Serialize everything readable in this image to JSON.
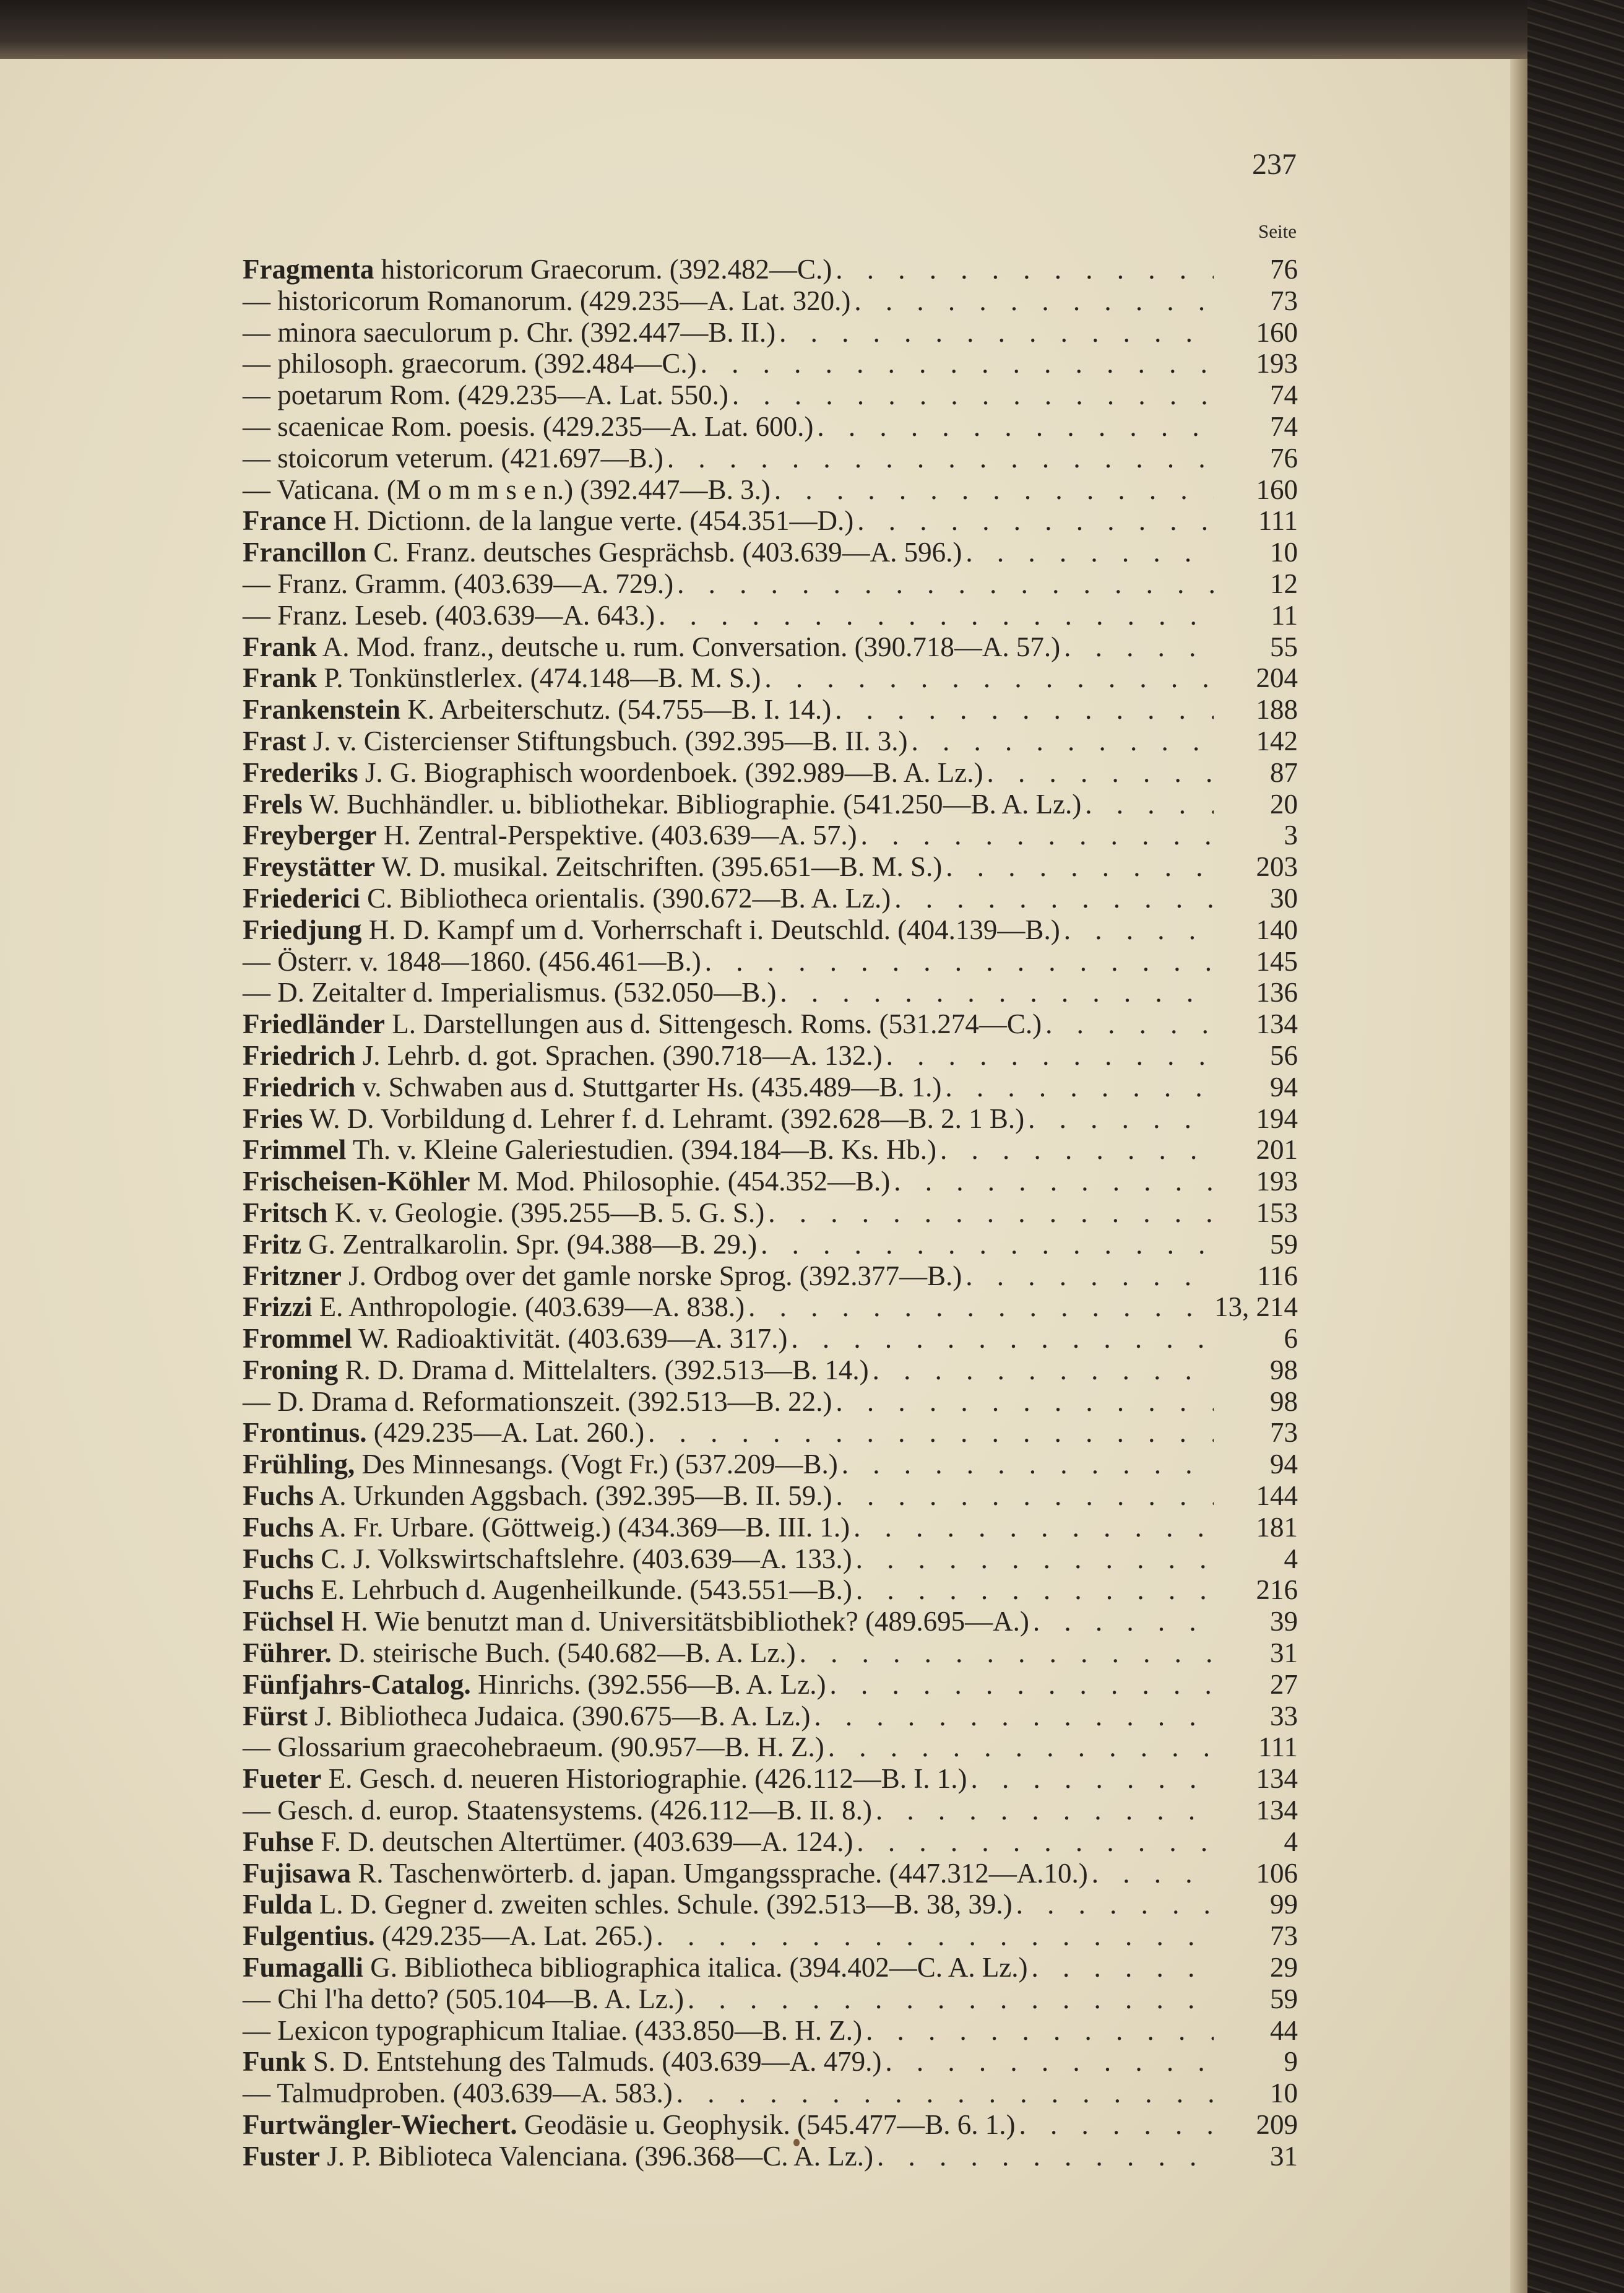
{
  "page_number": "237",
  "column_header": "Seite",
  "entries": [
    {
      "name": "Fragmenta",
      "text": " historicorum Graecorum. (392.482—C.)",
      "page": "76"
    },
    {
      "name": "",
      "text": "— historicorum Romanorum. (429.235—A. Lat. 320.)",
      "page": "73"
    },
    {
      "name": "",
      "text": "— minora saeculorum p. Chr. (392.447—B. II.)",
      "page": "160"
    },
    {
      "name": "",
      "text": "— philosoph. graecorum. (392.484—C.)",
      "page": "193"
    },
    {
      "name": "",
      "text": "— poetarum Rom. (429.235—A. Lat. 550.)",
      "page": "74"
    },
    {
      "name": "",
      "text": "— scaenicae Rom. poesis. (429.235—A. Lat. 600.)",
      "page": "74"
    },
    {
      "name": "",
      "text": "— stoicorum veterum. (421.697—B.)",
      "page": "76"
    },
    {
      "name": "",
      "text": "— Vaticana. (M o m m s e n.) (392.447—B. 3.)",
      "page": "160"
    },
    {
      "name": "France",
      "text": " H. Dictionn. de la langue verte. (454.351—D.)",
      "page": "111"
    },
    {
      "name": "Francillon",
      "text": " C. Franz. deutsches Gesprächsb. (403.639—A. 596.)",
      "page": "10"
    },
    {
      "name": "",
      "text": "— Franz. Gramm. (403.639—A. 729.)",
      "page": "12"
    },
    {
      "name": "",
      "text": "— Franz. Leseb. (403.639—A. 643.)",
      "page": "11"
    },
    {
      "name": "Frank",
      "text": " A. Mod. franz., deutsche u. rum. Conversation. (390.718—A. 57.)",
      "page": "55"
    },
    {
      "name": "Frank",
      "text": " P. Tonkünstlerlex. (474.148—B. M. S.)",
      "page": "204"
    },
    {
      "name": "Frankenstein",
      "text": " K. Arbeiterschutz. (54.755—B. I. 14.)",
      "page": "188"
    },
    {
      "name": "Frast",
      "text": " J. v. Cistercienser Stiftungsbuch. (392.395—B. II. 3.)",
      "page": "142"
    },
    {
      "name": "Frederiks",
      "text": " J. G. Biographisch woordenboek. (392.989—B. A. Lz.)",
      "page": "87"
    },
    {
      "name": "Frels",
      "text": " W. Buchhändler. u. bibliothekar. Bibliographie. (541.250—B. A. Lz.)",
      "page": "20"
    },
    {
      "name": "Freyberger",
      "text": " H. Zentral-Perspektive. (403.639—A. 57.)",
      "page": "3"
    },
    {
      "name": "Freystätter",
      "text": " W. D. musikal. Zeitschriften. (395.651—B. M. S.)",
      "page": "203"
    },
    {
      "name": "Friederici",
      "text": " C. Bibliotheca orientalis. (390.672—B. A. Lz.)",
      "page": "30"
    },
    {
      "name": "Friedjung",
      "text": " H. D. Kampf um d. Vorherrschaft i. Deutschld. (404.139—B.)",
      "page": "140"
    },
    {
      "name": "",
      "text": "— Österr. v. 1848—1860. (456.461—B.)",
      "page": "145"
    },
    {
      "name": "",
      "text": "— D. Zeitalter d. Imperialismus. (532.050—B.)",
      "page": "136"
    },
    {
      "name": "Friedländer",
      "text": " L. Darstellungen aus d. Sittengesch. Roms. (531.274—C.)",
      "page": "134"
    },
    {
      "name": "Friedrich",
      "text": " J. Lehrb. d. got. Sprachen. (390.718—A. 132.)",
      "page": "56"
    },
    {
      "name": "Friedrich",
      "text": " v. Schwaben aus d. Stuttgarter Hs. (435.489—B. 1.)",
      "page": "94"
    },
    {
      "name": "Fries",
      "text": " W. D. Vorbildung d. Lehrer f. d. Lehramt. (392.628—B. 2. 1 B.)",
      "page": "194"
    },
    {
      "name": "Frimmel",
      "text": " Th. v. Kleine Galeriestudien. (394.184—B. Ks. Hb.)",
      "page": "201"
    },
    {
      "name": "Frischeisen-Köhler",
      "text": " M. Mod. Philosophie. (454.352—B.)",
      "page": "193"
    },
    {
      "name": "Fritsch",
      "text": " K. v. Geologie. (395.255—B. 5. G. S.)",
      "page": "153"
    },
    {
      "name": "Fritz",
      "text": " G. Zentralkarolin. Spr. (94.388—B. 29.)",
      "page": "59"
    },
    {
      "name": "Fritzner",
      "text": " J. Ordbog over det gamle norske Sprog. (392.377—B.)",
      "page": "116"
    },
    {
      "name": "Frizzi",
      "text": " E. Anthropologie. (403.639—A. 838.)",
      "page": "13, 214"
    },
    {
      "name": "Frommel",
      "text": " W. Radioaktivität. (403.639—A. 317.)",
      "page": "6"
    },
    {
      "name": "Froning",
      "text": " R. D. Drama d. Mittelalters. (392.513—B. 14.)",
      "page": "98"
    },
    {
      "name": "",
      "text": "— D. Drama d. Reformationszeit. (392.513—B. 22.)",
      "page": "98"
    },
    {
      "name": "Frontinus.",
      "text": " (429.235—A. Lat. 260.)",
      "page": "73"
    },
    {
      "name": "Frühling,",
      "text": " Des Minnesangs. (Vogt Fr.) (537.209—B.)",
      "page": "94"
    },
    {
      "name": "Fuchs",
      "text": " A. Urkunden Aggsbach. (392.395—B. II. 59.)",
      "page": "144"
    },
    {
      "name": "Fuchs",
      "text": " A. Fr. Urbare. (Göttweig.) (434.369—B. III. 1.)",
      "page": "181"
    },
    {
      "name": "Fuchs",
      "text": " C. J. Volkswirtschaftslehre. (403.639—A. 133.)",
      "page": "4"
    },
    {
      "name": "Fuchs",
      "text": " E. Lehrbuch d. Augenheilkunde. (543.551—B.)",
      "page": "216"
    },
    {
      "name": "Füchsel",
      "text": " H. Wie benutzt man d. Universitätsbibliothek? (489.695—A.)",
      "page": "39"
    },
    {
      "name": "Führer.",
      "text": " D. steirische Buch. (540.682—B. A. Lz.)",
      "page": "31"
    },
    {
      "name": "Fünfjahrs-Catalog.",
      "text": " Hinrichs. (392.556—B. A. Lz.)",
      "page": "27"
    },
    {
      "name": "Fürst",
      "text": " J. Bibliotheca Judaica. (390.675—B. A. Lz.)",
      "page": "33"
    },
    {
      "name": "",
      "text": "— Glossarium graecohebraeum. (90.957—B. H. Z.)",
      "page": "111"
    },
    {
      "name": "Fueter",
      "text": " E. Gesch. d. neueren Historiographie. (426.112—B. I. 1.)",
      "page": "134"
    },
    {
      "name": "",
      "text": "— Gesch. d. europ. Staatensystems. (426.112—B. II. 8.)",
      "page": "134"
    },
    {
      "name": "Fuhse",
      "text": " F. D. deutschen Altertümer. (403.639—A. 124.)",
      "page": "4"
    },
    {
      "name": "Fujisawa",
      "text": " R. Taschenwörterb. d. japan. Umgangssprache. (447.312—A.10.)",
      "page": "106"
    },
    {
      "name": "Fulda",
      "text": " L. D. Gegner d. zweiten schles. Schule. (392.513—B. 38, 39.)",
      "page": "99"
    },
    {
      "name": "Fulgentius.",
      "text": " (429.235—A. Lat. 265.)",
      "page": "73"
    },
    {
      "name": "Fumagalli",
      "text": " G. Bibliotheca bibliographica italica. (394.402—C. A. Lz.)",
      "page": "29"
    },
    {
      "name": "",
      "text": "— Chi l'ha detto? (505.104—B. A. Lz.)",
      "page": "59"
    },
    {
      "name": "",
      "text": "— Lexicon typographicum Italiae. (433.850—B. H. Z.)",
      "page": "44"
    },
    {
      "name": "Funk",
      "text": " S. D. Entstehung des Talmuds. (403.639—A. 479.)",
      "page": "9"
    },
    {
      "name": "",
      "text": "— Talmudproben. (403.639—A. 583.)",
      "page": "10"
    },
    {
      "name": "Furtwängler-Wiechert.",
      "text": " Geodäsie u. Geophysik. (545.477—B. 6. 1.)",
      "page": "209"
    },
    {
      "name": "Fuster",
      "text": " J. P. Biblioteca Valenciana. (396.368—C. A. Lz.)",
      "page": "31"
    }
  ]
}
